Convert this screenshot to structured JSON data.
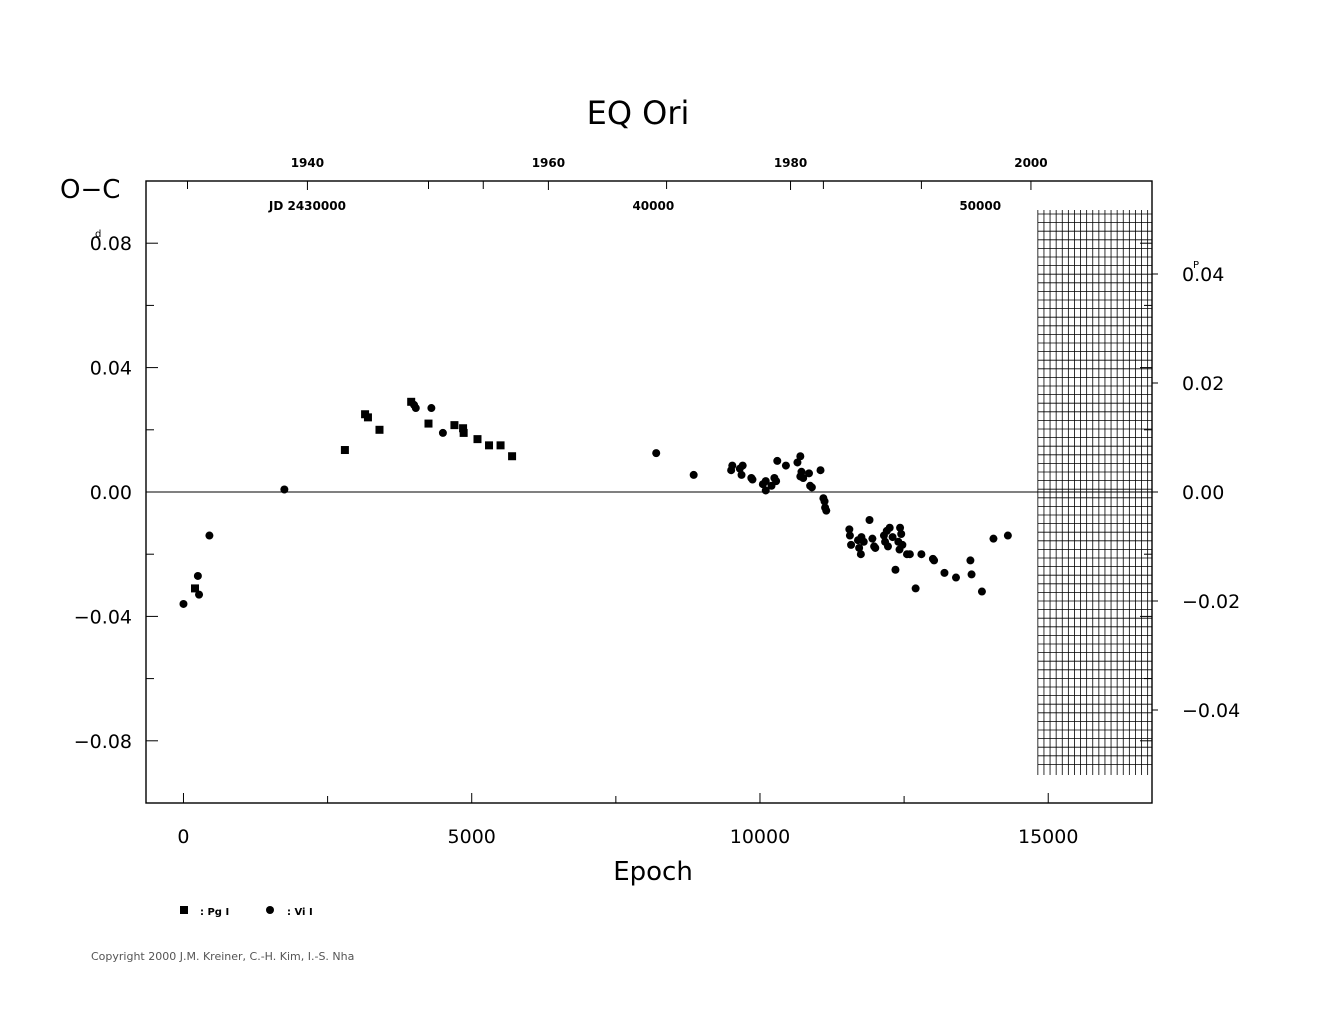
{
  "chart_data": {
    "type": "scatter",
    "title": "EQ  Ori",
    "xlabel": "Epoch",
    "ylabel": "O−C",
    "xlim": [
      -650,
      16800
    ],
    "ylim": [
      -0.1,
      0.1
    ],
    "x_ticks": [
      0,
      5000,
      10000,
      15000
    ],
    "y_ticks": [
      -0.08,
      -0.04,
      0.0,
      0.04,
      0.08
    ],
    "y_tick_labels": [
      "−0.08",
      "−0.04",
      "0.00",
      "0.04",
      "0.08"
    ],
    "y_unit_superscript": "d",
    "y2_ticks": [
      -0.04,
      -0.02,
      0.0,
      0.02,
      0.04
    ],
    "y2_tick_labels": [
      "−0.04",
      "−0.02",
      "0.00",
      "0.02",
      "0.04"
    ],
    "y2_unit_superscript": "P",
    "top_year_labels": [
      {
        "label": "1940",
        "epoch": 2150
      },
      {
        "label": "1960",
        "epoch": 6330
      },
      {
        "label": "1980",
        "epoch": 10530
      },
      {
        "label": "2000",
        "epoch": 14700
      }
    ],
    "top_jd_labels": [
      {
        "label": "JD  2430000",
        "epoch": 2150
      },
      {
        "label": "40000",
        "epoch": 8150
      },
      {
        "label": "50000",
        "epoch": 13820
      }
    ],
    "zero_line": true,
    "hatched_future_region": {
      "from_epoch": 14820
    },
    "legend": [
      {
        "marker": "square",
        "label": ": Pg  I"
      },
      {
        "marker": "circle",
        "label": ": Vi  I"
      }
    ],
    "series": [
      {
        "name": "Pg I",
        "marker": "square",
        "points": [
          [
            200,
            -0.031
          ],
          [
            2800,
            0.0135
          ],
          [
            3150,
            0.025
          ],
          [
            3200,
            0.024
          ],
          [
            3400,
            0.02
          ],
          [
            3950,
            0.029
          ],
          [
            4250,
            0.022
          ],
          [
            4700,
            0.0215
          ],
          [
            4850,
            0.0205
          ],
          [
            4860,
            0.019
          ],
          [
            5100,
            0.017
          ],
          [
            5300,
            0.015
          ],
          [
            5500,
            0.015
          ],
          [
            5700,
            0.0115
          ]
        ]
      },
      {
        "name": "Vi I",
        "marker": "circle",
        "points": [
          [
            0,
            -0.036
          ],
          [
            250,
            -0.027
          ],
          [
            270,
            -0.033
          ],
          [
            450,
            -0.014
          ],
          [
            1750,
            0.0008
          ],
          [
            4000,
            0.028
          ],
          [
            4030,
            0.027
          ],
          [
            4300,
            0.027
          ],
          [
            4500,
            0.019
          ],
          [
            8200,
            0.0125
          ],
          [
            8850,
            0.0055
          ],
          [
            9500,
            0.007
          ],
          [
            9520,
            0.0085
          ],
          [
            9650,
            0.0075
          ],
          [
            9680,
            0.0055
          ],
          [
            9700,
            0.0085
          ],
          [
            9850,
            0.0045
          ],
          [
            9870,
            0.004
          ],
          [
            10050,
            0.0025
          ],
          [
            10100,
            0.0035
          ],
          [
            10100,
            0.0005
          ],
          [
            10200,
            0.002
          ],
          [
            10250,
            0.0045
          ],
          [
            10280,
            0.0035
          ],
          [
            10300,
            0.01
          ],
          [
            10450,
            0.0085
          ],
          [
            10650,
            0.0095
          ],
          [
            10700,
            0.0115
          ],
          [
            10700,
            0.005
          ],
          [
            10720,
            0.0065
          ],
          [
            10750,
            0.0045
          ],
          [
            10850,
            0.006
          ],
          [
            10870,
            0.002
          ],
          [
            10900,
            0.0015
          ],
          [
            11050,
            0.007
          ],
          [
            11100,
            -0.002
          ],
          [
            11120,
            -0.003
          ],
          [
            11130,
            -0.005
          ],
          [
            11150,
            -0.006
          ],
          [
            11550,
            -0.012
          ],
          [
            11560,
            -0.014
          ],
          [
            11580,
            -0.017
          ],
          [
            11700,
            -0.0155
          ],
          [
            11720,
            -0.018
          ],
          [
            11750,
            -0.02
          ],
          [
            11760,
            -0.0145
          ],
          [
            11800,
            -0.016
          ],
          [
            11900,
            -0.009
          ],
          [
            11950,
            -0.015
          ],
          [
            11980,
            -0.0175
          ],
          [
            12000,
            -0.018
          ],
          [
            12150,
            -0.014
          ],
          [
            12170,
            -0.016
          ],
          [
            12200,
            -0.0125
          ],
          [
            12220,
            -0.0175
          ],
          [
            12250,
            -0.0115
          ],
          [
            12300,
            -0.0145
          ],
          [
            12350,
            -0.025
          ],
          [
            12400,
            -0.016
          ],
          [
            12420,
            -0.0185
          ],
          [
            12430,
            -0.0115
          ],
          [
            12450,
            -0.0135
          ],
          [
            12470,
            -0.017
          ],
          [
            12550,
            -0.02
          ],
          [
            12600,
            -0.02
          ],
          [
            12700,
            -0.031
          ],
          [
            12800,
            -0.02
          ],
          [
            13000,
            -0.0215
          ],
          [
            13020,
            -0.022
          ],
          [
            13200,
            -0.026
          ],
          [
            13400,
            -0.0275
          ],
          [
            13650,
            -0.022
          ],
          [
            13670,
            -0.0265
          ],
          [
            13850,
            -0.032
          ],
          [
            14050,
            -0.015
          ],
          [
            14300,
            -0.014
          ]
        ]
      }
    ]
  },
  "copyright": "Copyright 2000 J.M. Kreiner, C.-H. Kim, I.-S. Nha"
}
